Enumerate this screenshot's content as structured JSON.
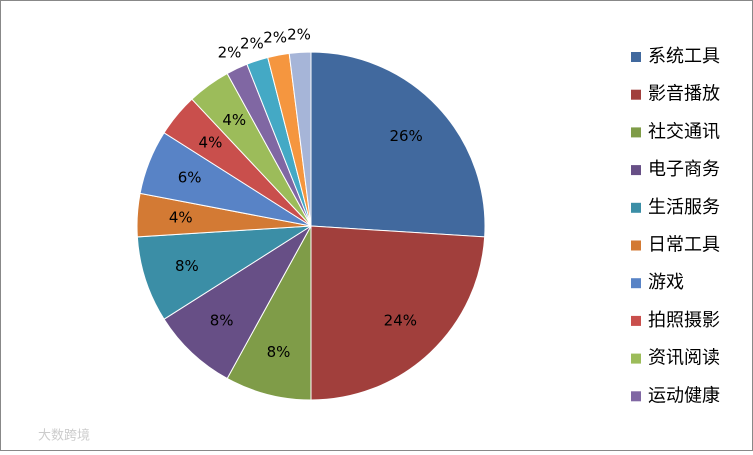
{
  "chart_data": {
    "type": "pie",
    "categories": [
      "系统工具",
      "影音播放",
      "社交通讯",
      "电子商务",
      "生活服务",
      "日常工具",
      "游戏",
      "拍照摄影",
      "资讯阅读",
      "运动健康",
      null,
      null,
      null
    ],
    "values": [
      26,
      24,
      8,
      8,
      8,
      4,
      6,
      4,
      4,
      2,
      2,
      2,
      2
    ],
    "value_labels": [
      "26%",
      "24%",
      "8%",
      "8%",
      "8%",
      "4%",
      "6%",
      "4%",
      "4%",
      "2%",
      "2%",
      "2%",
      "2%"
    ],
    "colors": [
      "#41699e",
      "#a13f3c",
      "#7f9c48",
      "#674f86",
      "#3b8ea6",
      "#d37a34",
      "#5883c6",
      "#c94f4c",
      "#9cbc5a",
      "#8067a3",
      "#44a9c5",
      "#f5963f",
      "#a6b5d8"
    ],
    "watermark": "大数跨境"
  }
}
